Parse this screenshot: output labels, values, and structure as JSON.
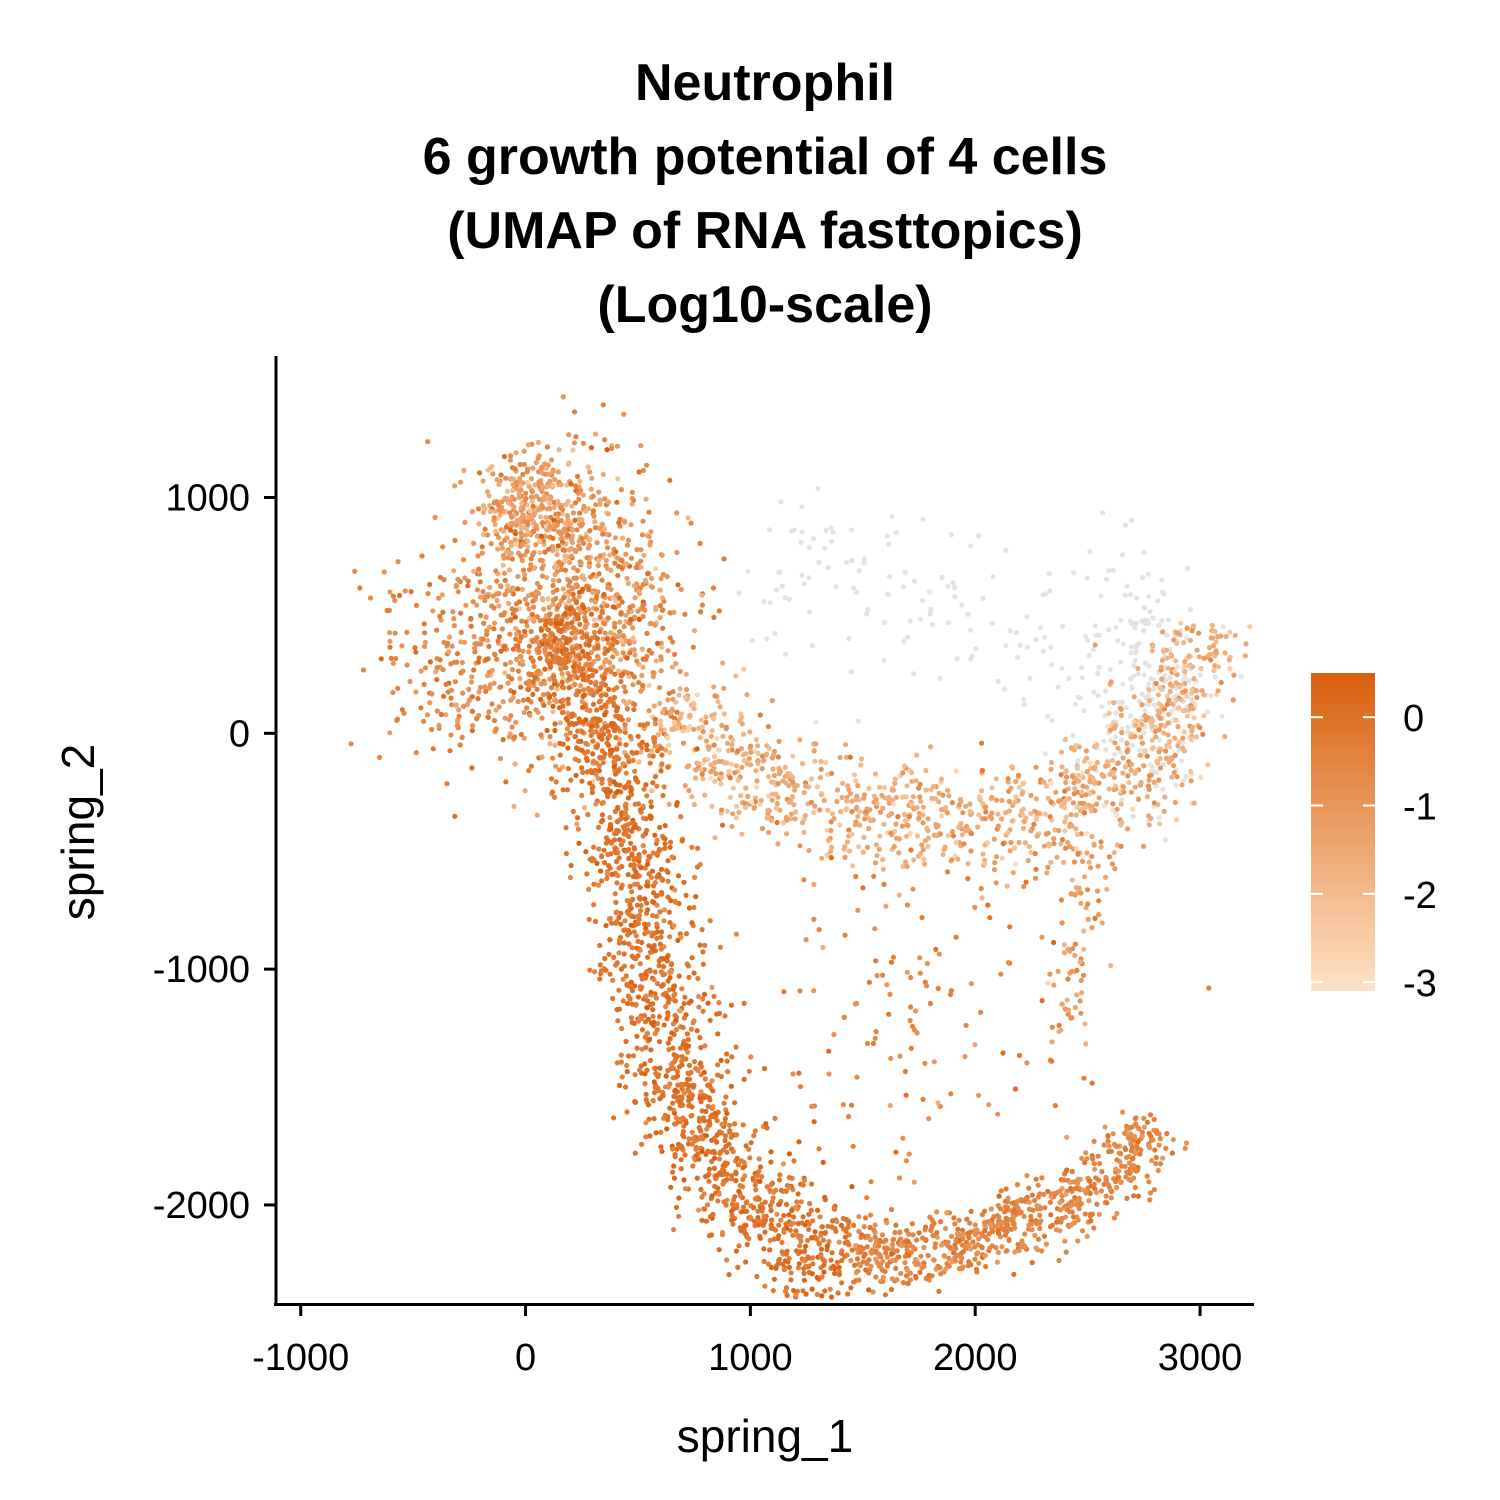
{
  "chart_data": {
    "type": "scatter",
    "title": [
      "Neutrophil",
      "6 growth potential of 4 cells",
      "(UMAP of RNA fasttopics)",
      "(Log10-scale)"
    ],
    "xlabel": "spring_1",
    "ylabel": "spring_2",
    "xlim": [
      -1110,
      3240
    ],
    "ylim": [
      -2420,
      1600
    ],
    "xticks": [
      -1000,
      0,
      1000,
      2000,
      3000
    ],
    "xtick_labels": [
      "-1000",
      "0",
      "1000",
      "2000",
      "3000"
    ],
    "yticks": [
      -2000,
      -1000,
      0,
      1000
    ],
    "ytick_labels": [
      "-2000",
      "-1000",
      "0",
      "1000"
    ],
    "legend": {
      "placement": "right",
      "min": -3.1,
      "max": 0.5,
      "ticks": [
        0,
        -1,
        -2,
        -3
      ],
      "tick_labels": [
        "0",
        "-1",
        "-2",
        "-3"
      ],
      "color_low": "#fde3c6",
      "color_high": "#d95f0e"
    },
    "na_color": "#e3e3e3",
    "grid": false,
    "point_regions": [
      {
        "name": "upper-cloud",
        "center": [
          250,
          500
        ],
        "spread": [
          230,
          300
        ],
        "value": -0.9,
        "jitter": 0.6,
        "count": 900
      },
      {
        "name": "top-lobe",
        "center": [
          50,
          950
        ],
        "spread": [
          130,
          120
        ],
        "value": -1.2,
        "jitter": 0.5,
        "count": 350
      },
      {
        "name": "left-tail",
        "center": [
          -250,
          300
        ],
        "spread": [
          200,
          220
        ],
        "value": -0.6,
        "jitter": 0.4,
        "count": 250
      },
      {
        "name": "main-stem",
        "path": [
          [
            100,
            500
          ],
          [
            300,
            100
          ],
          [
            450,
            -400
          ],
          [
            550,
            -900
          ],
          [
            650,
            -1400
          ],
          [
            800,
            -1800
          ],
          [
            1100,
            -2100
          ],
          [
            1450,
            -2220
          ]
        ],
        "width": 110,
        "value": -0.1,
        "jitter": 0.3,
        "count": 1700
      },
      {
        "name": "bottom-arc",
        "path": [
          [
            1450,
            -2220
          ],
          [
            1800,
            -2200
          ],
          [
            2200,
            -2080
          ],
          [
            2500,
            -1950
          ],
          [
            2700,
            -1800
          ],
          [
            2780,
            -1650
          ]
        ],
        "width": 70,
        "value": -0.55,
        "jitter": 0.3,
        "count": 700
      },
      {
        "name": "middle-band",
        "path": [
          [
            600,
            100
          ],
          [
            900,
            -150
          ],
          [
            1300,
            -300
          ],
          [
            1800,
            -350
          ],
          [
            2200,
            -380
          ],
          [
            2500,
            -300
          ],
          [
            2750,
            -100
          ],
          [
            2950,
            150
          ],
          [
            3000,
            450
          ]
        ],
        "width": 110,
        "value": -1.6,
        "jitter": 0.5,
        "count": 1100
      },
      {
        "name": "sparse-interior",
        "center": [
          1750,
          -1200
        ],
        "spread": [
          450,
          450
        ],
        "value": -0.6,
        "jitter": 0.4,
        "count": 160
      },
      {
        "name": "right-drop",
        "path": [
          [
            2550,
            -450
          ],
          [
            2450,
            -900
          ],
          [
            2400,
            -1300
          ]
        ],
        "width": 50,
        "value": -1.3,
        "jitter": 0.4,
        "count": 80
      }
    ],
    "na_regions": [
      {
        "name": "grey-arc",
        "path": [
          [
            1000,
            700
          ],
          [
            1500,
            650
          ],
          [
            2000,
            500
          ],
          [
            2400,
            400
          ],
          [
            2700,
            350
          ],
          [
            2900,
            450
          ]
        ],
        "width": 180,
        "count": 160
      },
      {
        "name": "grey-right-cluster",
        "center": [
          2750,
          150
        ],
        "spread": [
          170,
          280
        ],
        "count": 200
      }
    ]
  }
}
